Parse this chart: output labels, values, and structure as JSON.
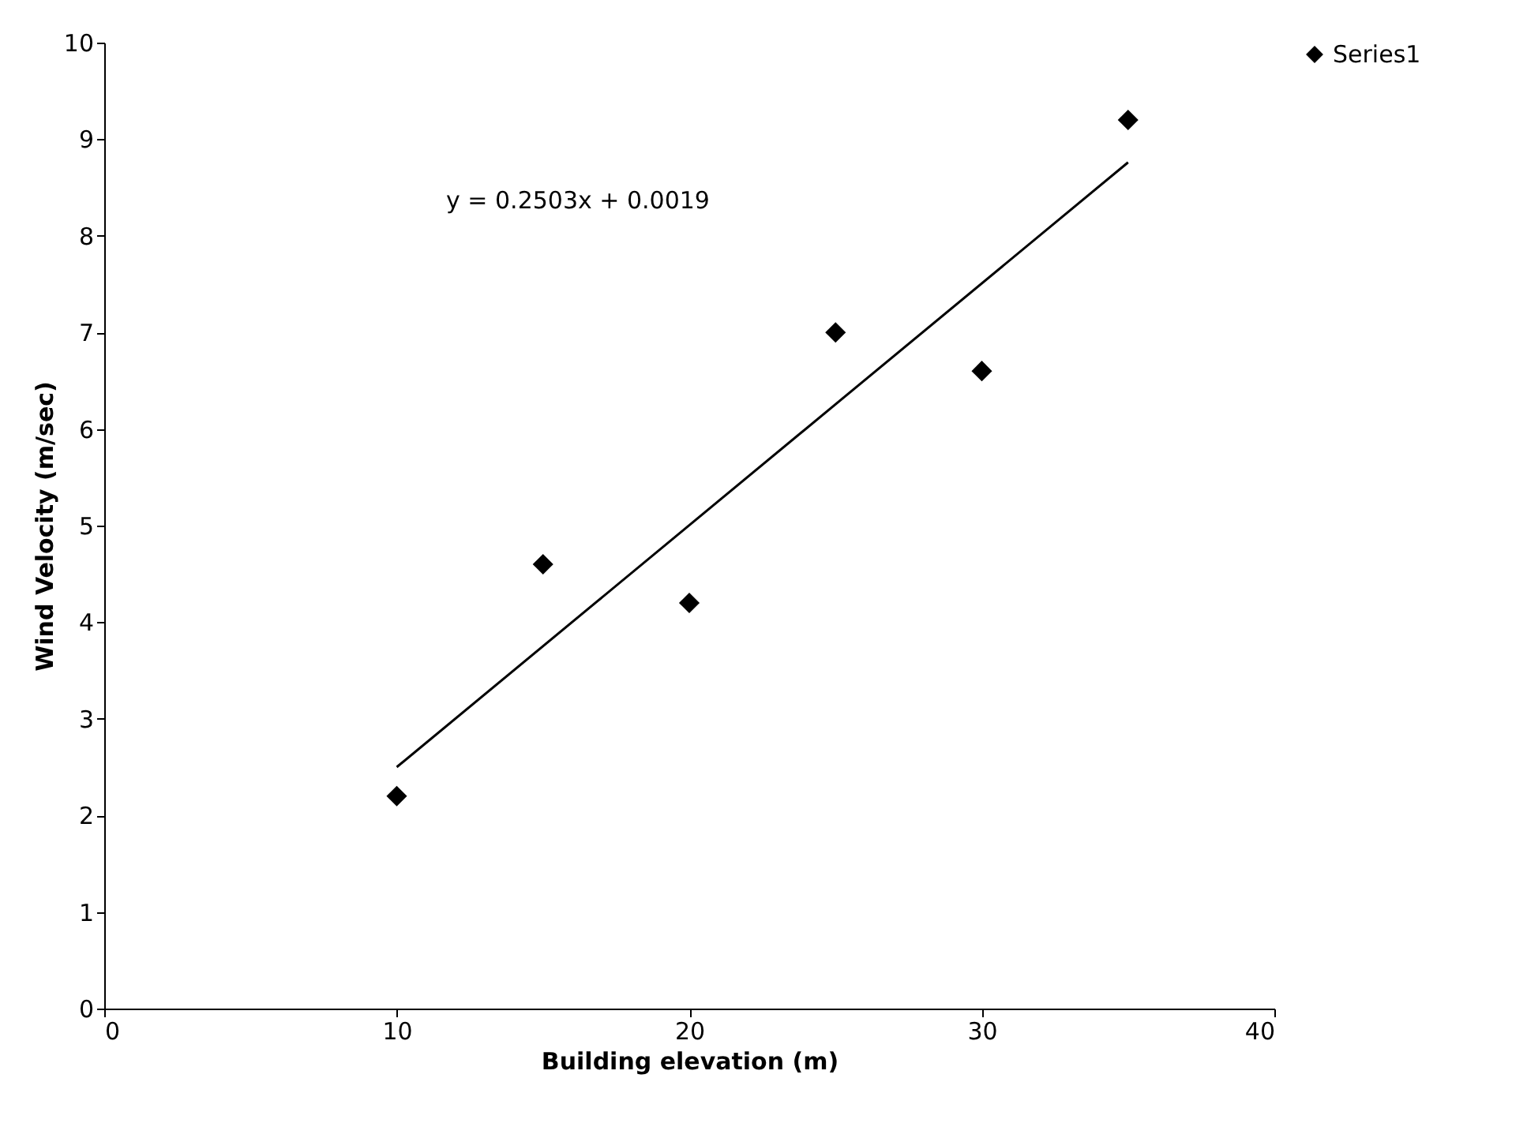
{
  "chart_data": {
    "type": "scatter",
    "xlabel": "Building elevation (m)",
    "ylabel": "Wind Velocity (m/sec)",
    "xlim": [
      0,
      40
    ],
    "xticks": [
      0,
      10,
      20,
      30,
      40
    ],
    "ylim": [
      0,
      10
    ],
    "yticks": [
      0,
      1,
      2,
      3,
      4,
      5,
      6,
      7,
      8,
      9,
      10
    ],
    "grid": false,
    "legend": "right",
    "marker": "diamond",
    "annotations": [
      "y = 0.2503x + 0.0019"
    ],
    "series": [
      {
        "name": "Series1",
        "color": "#000000",
        "x": [
          10,
          15,
          20,
          25,
          30,
          35
        ],
        "values": [
          2.2,
          4.6,
          4.2,
          7.0,
          6.6,
          9.2
        ]
      },
      {
        "type": "line",
        "color": "#000000",
        "x": [
          10,
          35
        ],
        "values": [
          2.5,
          8.76
        ],
        "line_style": "solid",
        "marker": "none"
      }
    ]
  }
}
